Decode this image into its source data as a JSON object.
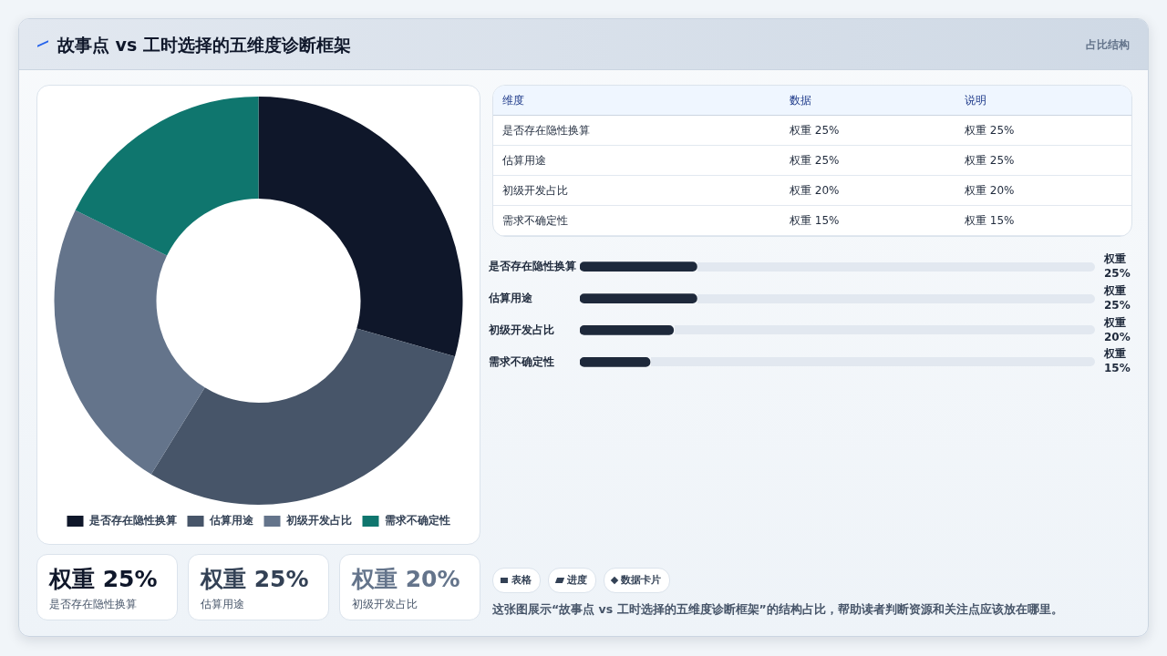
{
  "chart_data": [
    {
      "type": "other",
      "title": "故事点 vs 工时选择的五维度诊断框架",
      "subtitle": "占比结构"
    },
    {
      "type": "donut",
      "categories": [
        "是否存在隐性换算",
        "估算用途",
        "初级开发占比",
        "需求不确定性"
      ],
      "values": [
        29.4,
        29.4,
        23.5,
        17.7
      ],
      "colors": [
        "#0f172a",
        "#475569",
        "#64748b",
        "#0f766e"
      ],
      "legend": "bottom"
    },
    {
      "type": "other",
      "annotations": [
        "维度",
        "数据",
        "说明",
        "是否存在隐性换算",
        "权重 25%",
        "权重 25%",
        "估算用途",
        "权重 25%",
        "权重 25%",
        "初级开发占比",
        "权重 20%",
        "权重 20%",
        "需求不确定性",
        "权重 15%",
        "权重 15%"
      ]
    },
    {
      "type": "bar",
      "orientation": "horizontal",
      "categories": [
        "是否存在隐性换算",
        "估算用途",
        "初级开发占比",
        "需求不确定性"
      ],
      "values": [
        25,
        25,
        20,
        15
      ],
      "color": "#1e293b",
      "xlim": [
        0,
        110
      ],
      "value_labels": [
        "权重 25%",
        "权重 25%",
        "权重 20%",
        "权重 15%"
      ]
    },
    {
      "type": "other",
      "annotations": [
        "权重 25%",
        "是否存在隐性换算",
        "权重 25%",
        "估算用途",
        "权重 20%",
        "初级开发占比"
      ]
    },
    {
      "type": "other",
      "annotations": [
        "表格",
        "进度",
        "数据卡片",
        "这张图展示“故事点 vs 工时选择的五维度诊断框架”的结构占比，帮助读者判断资源和关注点应该放在哪里。"
      ]
    }
  ]
}
